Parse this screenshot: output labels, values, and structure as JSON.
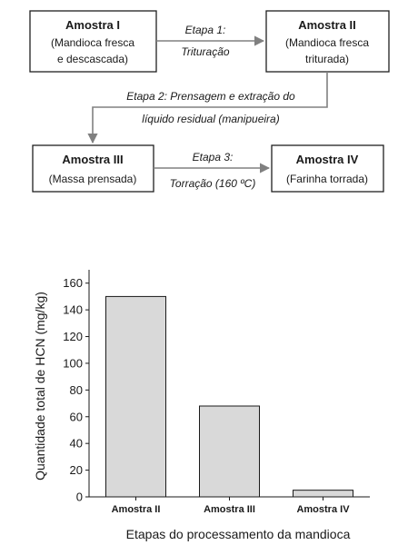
{
  "flowchart": {
    "box1": {
      "title": "Amostra I",
      "line1": "(Mandioca fresca",
      "line2": "e descascada)"
    },
    "box2": {
      "title": "Amostra II",
      "line1": "(Mandioca fresca",
      "line2": "triturada)"
    },
    "box3": {
      "title": "Amostra III",
      "line1": "(Massa prensada)"
    },
    "box4": {
      "title": "Amostra IV",
      "line1": "(Farinha torrada)"
    },
    "step1": {
      "line1": "Etapa 1:",
      "line2": "Trituração"
    },
    "step2": {
      "line1": "Etapa 2: Prensagem e extração do",
      "line2": "líquido residual (manipueira)"
    },
    "step3": {
      "line1": "Etapa 3:",
      "line2": "Torração (160 ºC)"
    },
    "arrow_color": "#808080"
  },
  "chart_data": {
    "type": "bar",
    "categories": [
      "Amostra II",
      "Amostra III",
      "Amostra IV"
    ],
    "values": [
      150,
      68,
      5
    ],
    "ylabel": "Quantidade total de HCN (mg/kg)",
    "xlabel": "Etapas do processamento da mandioca",
    "ylim": [
      0,
      170
    ],
    "yticks": [
      0,
      20,
      40,
      60,
      80,
      100,
      120,
      140,
      160
    ],
    "grid": false,
    "bar_color": "#d9d9d9"
  }
}
